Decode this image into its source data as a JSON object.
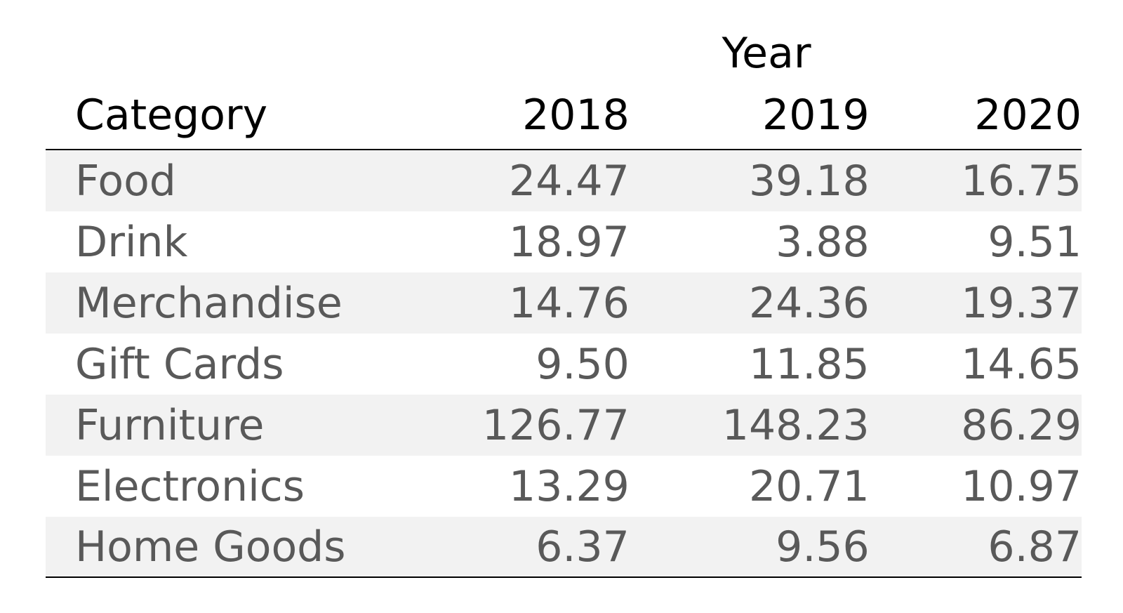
{
  "chart_data": {
    "type": "table",
    "spanner": "Year",
    "columns": [
      "Category",
      "2018",
      "2019",
      "2020"
    ],
    "rows": [
      {
        "category": "Food",
        "values": [
          "24.47",
          "39.18",
          "16.75"
        ]
      },
      {
        "category": "Drink",
        "values": [
          "18.97",
          "3.88",
          "9.51"
        ]
      },
      {
        "category": "Merchandise",
        "values": [
          "14.76",
          "24.36",
          "19.37"
        ]
      },
      {
        "category": "Gift Cards",
        "values": [
          "9.50",
          "11.85",
          "14.65"
        ]
      },
      {
        "category": "Furniture",
        "values": [
          "126.77",
          "148.23",
          "86.29"
        ]
      },
      {
        "category": "Electronics",
        "values": [
          "13.29",
          "20.71",
          "10.97"
        ]
      },
      {
        "category": "Home Goods",
        "values": [
          "6.37",
          "9.56",
          "6.87"
        ]
      }
    ],
    "colors": {
      "header_text": "#000000",
      "body_text": "#595959",
      "stripe": "#f2f2f2",
      "rule": "#000000"
    }
  }
}
